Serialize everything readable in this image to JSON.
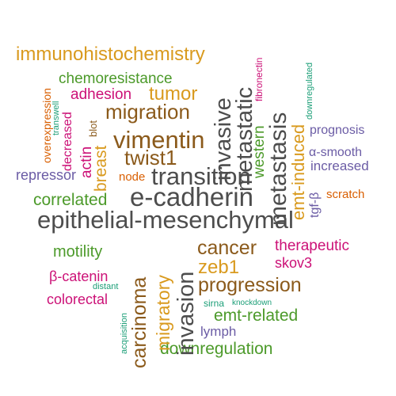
{
  "palette": {
    "dark_gray": "#4d4d4d",
    "brown": "#8b5a1b",
    "orange": "#d99a1e",
    "green": "#4c9a2a",
    "purple": "#6b5ca5",
    "magenta": "#cc1177",
    "teal": "#1b9e77",
    "red_orange": "#d95f02"
  },
  "words": {
    "epithelial_mesenchymal": "epithelial-mesenchymal",
    "e_cadherin": "e-cadherin",
    "transition": "transition",
    "metastasis": "metastasis",
    "metastatic": "metastatic",
    "invasive": "invasive",
    "vimentin": "vimentin",
    "twist1": "twist1",
    "migration": "migration",
    "tumor": "tumor",
    "immunohistochemistry": "immunohistochemistry",
    "chemoresistance": "chemoresistance",
    "adhesion": "adhesion",
    "breast": "breast",
    "actin": "actin",
    "blot": "blot",
    "decreased": "decreased",
    "overexpression": "overexpression",
    "transwell": "transwell",
    "repressor": "repressor",
    "node": "node",
    "correlated": "correlated",
    "western": "western",
    "fibronectin": "fibronectin",
    "emt_induced": "emt-induced",
    "downregulated": "downregulated",
    "prognosis": "prognosis",
    "alpha_smooth": "α-smooth",
    "increased": "increased",
    "tgf_beta": "tgf-β",
    "scratch": "scratch",
    "cancer": "cancer",
    "zeb1": "zeb1",
    "progression": "progression",
    "invasion": "invasion",
    "migratory": "migratory",
    "carcinoma": "carcinoma",
    "therapeutic": "therapeutic",
    "skov3": "skov3",
    "motility": "motility",
    "beta_catenin": "β-catenin",
    "distant": "distant",
    "colorectal": "colorectal",
    "acquisition": "acquisition",
    "sirna": "sirna",
    "knockdown": "knockdown",
    "emt_related": "emt-related",
    "lymph": "lymph",
    "downregulation": "downregulation"
  }
}
